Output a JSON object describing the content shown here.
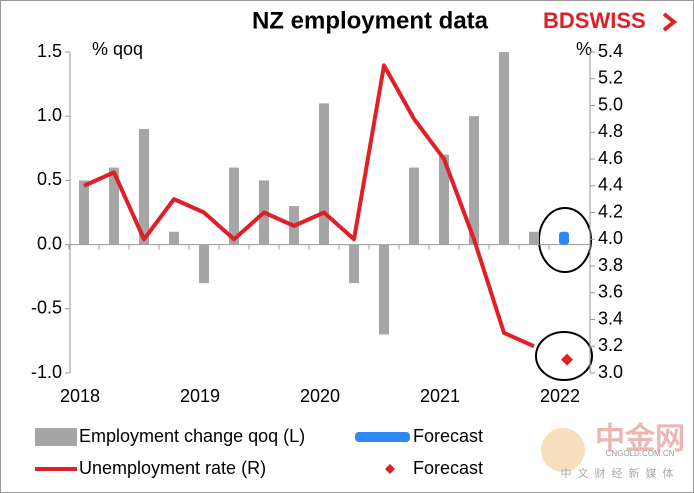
{
  "chart_data": {
    "type": "combo",
    "title": "NZ employment data",
    "brand": "BDSWISS",
    "y_label": "% qoq",
    "y2_label": "%",
    "categories": [
      "2018",
      null,
      null,
      null,
      "2019",
      null,
      null,
      null,
      "2020",
      null,
      null,
      null,
      "2021",
      null,
      null,
      null,
      "2022"
    ],
    "ylim": [
      -1.0,
      1.5
    ],
    "yticks": [
      {
        "value": -1.0,
        "label": "-1.0"
      },
      -0.5,
      {
        "value": 0,
        "label": "0.0"
      },
      0.5,
      {
        "value": 1.0,
        "label": "1.0"
      },
      1.5
    ],
    "y2lim": [
      3.0,
      5.4
    ],
    "y2ticks": [
      {
        "value": 3.0,
        "label": "3.0"
      },
      3.2,
      3.4,
      3.6,
      3.8,
      {
        "value": 4.0,
        "label": "4.0"
      },
      4.2,
      4.4,
      4.6,
      4.8,
      {
        "value": 5.0,
        "label": "5.0"
      },
      5.2,
      5.4
    ],
    "series": [
      {
        "name": "Employment change qoq (L)",
        "type": "bar",
        "color": "#a6a6a6",
        "values": [
          0.5,
          0.6,
          0.9,
          0.1,
          -0.3,
          0.6,
          0.5,
          0.3,
          1.1,
          -0.3,
          -0.7,
          0.6,
          0.7,
          1.0,
          1.5,
          0.1,
          null
        ]
      },
      {
        "name": "Forecast",
        "type": "bar",
        "color": "#2f86f6",
        "values": [
          null,
          null,
          null,
          null,
          null,
          null,
          null,
          null,
          null,
          null,
          null,
          null,
          null,
          null,
          null,
          null,
          0.1
        ]
      },
      {
        "name": "Unemployment rate (R)",
        "type": "line",
        "color": "#e02028",
        "axis": "y2",
        "values": [
          4.4,
          4.5,
          4.0,
          4.3,
          4.2,
          4.0,
          4.2,
          4.1,
          4.2,
          4.0,
          5.3,
          4.9,
          4.6,
          4.0,
          3.3,
          3.2,
          null
        ]
      },
      {
        "name": "Forecast",
        "type": "point",
        "color": "#e02028",
        "axis": "y2",
        "values": [
          null,
          null,
          null,
          null,
          null,
          null,
          null,
          null,
          null,
          null,
          null,
          null,
          null,
          null,
          null,
          null,
          3.1
        ]
      }
    ],
    "watermark": {
      "title": "中金网",
      "url": "CNGOLD.COM.CN",
      "tagline": "中文财经新媒体"
    }
  }
}
